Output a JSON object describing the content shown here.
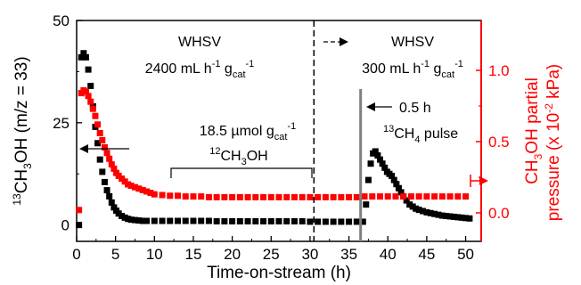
{
  "chart_data": {
    "type": "scatter",
    "colors": {
      "left": "#000000",
      "right": "#ff0000",
      "pulse_line": "#808080"
    },
    "x": {
      "label": "Time-on-stream (h)",
      "range": [
        0,
        52
      ],
      "ticks": [
        0,
        5,
        10,
        15,
        20,
        25,
        30,
        35,
        40,
        45,
        50
      ],
      "tick_labels": [
        "0",
        "5",
        "10",
        "15",
        "20",
        "25",
        "30",
        "35",
        "40",
        "45",
        "50"
      ]
    },
    "y_left": {
      "label_parts": {
        "sup": "13",
        "main": "CH",
        "sub": "3",
        "rest": "OH (m/z = 33)"
      },
      "range": [
        -4,
        50
      ],
      "ticks": [
        0,
        25,
        50
      ],
      "tick_labels": [
        "0",
        "25",
        "50"
      ]
    },
    "y_right": {
      "label_line1_parts": {
        "a": "CH",
        "sub": "3",
        "b": "OH partial"
      },
      "label_line2_parts": {
        "a": "pressure (x 10",
        "sup": "-2",
        "b": " kPa)"
      },
      "range": [
        -0.2,
        1.35
      ],
      "ticks": [
        0.0,
        0.5,
        1.0
      ],
      "tick_labels": [
        "0.0",
        "0.5",
        "1.0"
      ]
    },
    "annotations": {
      "whsv1": {
        "line1": "WHSV",
        "l2_a": "2400 mL h",
        "l2_sup1": "-1",
        "l2_b": " g",
        "l2_sub": "cat",
        "l2_sup2": "-1"
      },
      "whsv2": {
        "line1": "WHSV",
        "l2_a": "300 mL h",
        "l2_sup1": "-1",
        "l2_b": " g",
        "l2_sub": "cat",
        "l2_sup2": "-1"
      },
      "umol": {
        "a": "18.5 µmol g",
        "sub": "cat",
        "sup": "-1"
      },
      "ch3oh12": {
        "sup": "12",
        "a": "CH",
        "sub": "3",
        "b": "OH"
      },
      "pulse_time": "0.5 h",
      "ch4pulse": {
        "sup": "13",
        "a": "CH",
        "sub": "4",
        "b": " pulse"
      }
    },
    "markers": {
      "switch_time": 30.5,
      "pulse_time": 36.5
    },
    "series": [
      {
        "axis": "left",
        "points": [
          [
            0.3,
            0
          ],
          [
            0.6,
            41
          ],
          [
            0.9,
            42
          ],
          [
            1.2,
            41
          ],
          [
            1.5,
            38
          ],
          [
            1.8,
            34
          ],
          [
            2.1,
            29
          ],
          [
            2.4,
            24
          ],
          [
            2.7,
            20
          ],
          [
            3.0,
            16
          ],
          [
            3.3,
            13
          ],
          [
            3.6,
            10.5
          ],
          [
            3.9,
            8.5
          ],
          [
            4.2,
            7
          ],
          [
            4.5,
            5.5
          ],
          [
            4.8,
            4.3
          ],
          [
            5.1,
            3.5
          ],
          [
            5.4,
            2.8
          ],
          [
            5.8,
            2.2
          ],
          [
            6.2,
            1.8
          ],
          [
            6.6,
            1.5
          ],
          [
            7.0,
            1.3
          ],
          [
            7.5,
            1.2
          ],
          [
            8,
            1.1
          ],
          [
            8.5,
            1
          ],
          [
            9,
            1
          ],
          [
            10,
            1
          ],
          [
            11,
            1
          ],
          [
            12,
            1
          ],
          [
            13,
            1
          ],
          [
            14,
            1
          ],
          [
            15,
            1
          ],
          [
            16,
            1
          ],
          [
            17,
            1
          ],
          [
            18,
            0.9
          ],
          [
            19,
            0.9
          ],
          [
            20,
            0.9
          ],
          [
            21,
            0.9
          ],
          [
            22,
            0.9
          ],
          [
            23,
            0.9
          ],
          [
            24,
            0.9
          ],
          [
            25,
            0.9
          ],
          [
            26,
            0.9
          ],
          [
            27,
            0.9
          ],
          [
            28,
            0.9
          ],
          [
            29,
            0.9
          ],
          [
            30,
            0.8
          ],
          [
            31,
            0.8
          ],
          [
            32,
            0.8
          ],
          [
            33,
            0.8
          ],
          [
            34,
            0.8
          ],
          [
            35,
            0.8
          ],
          [
            36,
            0.8
          ],
          [
            36.8,
            0.8
          ],
          [
            37.2,
            5
          ],
          [
            37.5,
            11
          ],
          [
            37.8,
            15
          ],
          [
            38.1,
            17.5
          ],
          [
            38.4,
            18
          ],
          [
            38.7,
            17
          ],
          [
            39,
            16
          ],
          [
            39.3,
            15
          ],
          [
            39.6,
            14
          ],
          [
            39.9,
            13
          ],
          [
            40.2,
            12.5
          ],
          [
            40.5,
            12
          ],
          [
            40.8,
            11
          ],
          [
            41.1,
            10
          ],
          [
            41.4,
            9
          ],
          [
            41.7,
            8
          ],
          [
            42,
            7
          ],
          [
            42.4,
            6
          ],
          [
            42.8,
            5
          ],
          [
            43.2,
            4.5
          ],
          [
            43.6,
            4
          ],
          [
            44,
            3.7
          ],
          [
            44.5,
            3.4
          ],
          [
            45,
            3.1
          ],
          [
            45.5,
            2.9
          ],
          [
            46,
            2.7
          ],
          [
            46.5,
            2.5
          ],
          [
            47,
            2.3
          ],
          [
            47.5,
            2.2
          ],
          [
            48,
            2.1
          ],
          [
            48.5,
            2
          ],
          [
            49,
            1.9
          ],
          [
            49.5,
            1.8
          ],
          [
            50,
            1.7
          ],
          [
            50.5,
            1.6
          ]
        ]
      },
      {
        "axis": "right",
        "points": [
          [
            0.3,
            0.02
          ],
          [
            0.6,
            0.84
          ],
          [
            0.9,
            0.86
          ],
          [
            1.2,
            0.85
          ],
          [
            1.5,
            0.82
          ],
          [
            1.8,
            0.78
          ],
          [
            2.1,
            0.73
          ],
          [
            2.4,
            0.68
          ],
          [
            2.7,
            0.62
          ],
          [
            3.0,
            0.56
          ],
          [
            3.3,
            0.51
          ],
          [
            3.6,
            0.46
          ],
          [
            3.9,
            0.42
          ],
          [
            4.2,
            0.38
          ],
          [
            4.5,
            0.34
          ],
          [
            4.8,
            0.31
          ],
          [
            5.1,
            0.28
          ],
          [
            5.4,
            0.26
          ],
          [
            5.8,
            0.24
          ],
          [
            6.2,
            0.22
          ],
          [
            6.6,
            0.2
          ],
          [
            7.0,
            0.19
          ],
          [
            7.5,
            0.18
          ],
          [
            8,
            0.17
          ],
          [
            8.5,
            0.16
          ],
          [
            9,
            0.15
          ],
          [
            9.5,
            0.14
          ],
          [
            10,
            0.13
          ],
          [
            11,
            0.125
          ],
          [
            12,
            0.12
          ],
          [
            13,
            0.12
          ],
          [
            14,
            0.115
          ],
          [
            15,
            0.115
          ],
          [
            16,
            0.115
          ],
          [
            17,
            0.11
          ],
          [
            18,
            0.11
          ],
          [
            19,
            0.11
          ],
          [
            20,
            0.11
          ],
          [
            21,
            0.11
          ],
          [
            22,
            0.11
          ],
          [
            23,
            0.11
          ],
          [
            24,
            0.11
          ],
          [
            25,
            0.11
          ],
          [
            26,
            0.11
          ],
          [
            27,
            0.11
          ],
          [
            28,
            0.11
          ],
          [
            29,
            0.11
          ],
          [
            30,
            0.11
          ],
          [
            31,
            0.11
          ],
          [
            32,
            0.11
          ],
          [
            33,
            0.11
          ],
          [
            34,
            0.11
          ],
          [
            35,
            0.11
          ],
          [
            36,
            0.11
          ],
          [
            37,
            0.115
          ],
          [
            38,
            0.115
          ],
          [
            39,
            0.115
          ],
          [
            40,
            0.115
          ],
          [
            41,
            0.115
          ],
          [
            42,
            0.115
          ],
          [
            43,
            0.115
          ],
          [
            44,
            0.115
          ],
          [
            45,
            0.115
          ],
          [
            46,
            0.115
          ],
          [
            47,
            0.115
          ],
          [
            48,
            0.115
          ],
          [
            49,
            0.115
          ],
          [
            50,
            0.115
          ]
        ]
      }
    ]
  }
}
